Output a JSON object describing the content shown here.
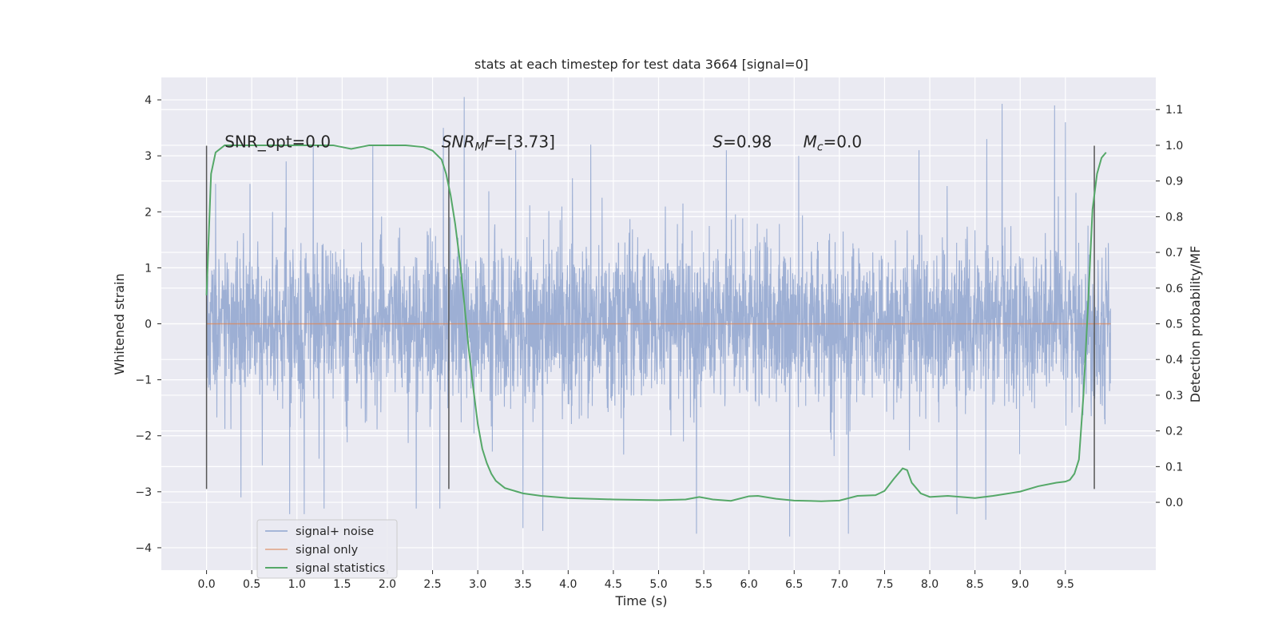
{
  "chart_data": {
    "type": "line",
    "title": "stats at each timestep for test data 3664 [signal=0]",
    "xlabel": "Time (s)",
    "ylabel_left": "Whitened strain",
    "ylabel_right": "Detection probability/MF",
    "xlim": [
      -0.5,
      10.5
    ],
    "ylim_left": [
      -4.4,
      4.4
    ],
    "ylim_right": [
      -0.19,
      1.19
    ],
    "xticks": [
      "0.0",
      "0.5",
      "1.0",
      "1.5",
      "2.0",
      "2.5",
      "3.0",
      "3.5",
      "4.0",
      "4.5",
      "5.0",
      "5.5",
      "6.0",
      "6.5",
      "7.0",
      "7.5",
      "8.0",
      "8.5",
      "9.0",
      "9.5"
    ],
    "yticks_left": [
      "4",
      "3",
      "2",
      "1",
      "0",
      "−1",
      "−2",
      "−3",
      "−4"
    ],
    "yticks_right": [
      "1.1",
      "1.0",
      "0.9",
      "0.8",
      "0.7",
      "0.6",
      "0.5",
      "0.4",
      "0.3",
      "0.2",
      "0.1",
      "0.0"
    ],
    "grid": true,
    "legend_position": "lower-left",
    "series": [
      {
        "name": "signal+ noise",
        "color": "#8fa5cf",
        "axis": "left",
        "description_range": [
          0.0,
          10.0
        ],
        "peaks_top": [
          [
            0.1,
            2.5
          ],
          [
            0.48,
            2.5
          ],
          [
            0.88,
            2.9
          ],
          [
            1.18,
            3.2
          ],
          [
            1.3,
            3.2
          ],
          [
            1.84,
            3.2
          ],
          [
            2.62,
            3.5
          ],
          [
            2.85,
            4.05
          ],
          [
            3.42,
            3.1
          ],
          [
            4.25,
            3.2
          ],
          [
            5.75,
            3.1
          ],
          [
            6.55,
            3.0
          ],
          [
            7.88,
            3.1
          ],
          [
            8.63,
            3.3
          ],
          [
            8.8,
            3.93
          ],
          [
            9.38,
            3.9
          ],
          [
            9.5,
            3.6
          ]
        ],
        "peaks_bottom": [
          [
            0.38,
            -3.1
          ],
          [
            0.92,
            -3.4
          ],
          [
            1.08,
            -3.4
          ],
          [
            1.3,
            -3.3
          ],
          [
            2.32,
            -3.3
          ],
          [
            2.58,
            -3.3
          ],
          [
            3.5,
            -3.65
          ],
          [
            3.72,
            -3.7
          ],
          [
            5.42,
            -3.75
          ],
          [
            6.45,
            -3.8
          ],
          [
            7.1,
            -3.75
          ],
          [
            8.3,
            -3.4
          ],
          [
            8.62,
            -3.5
          ]
        ]
      },
      {
        "name": "signal only",
        "color": "#dd8452",
        "axis": "left",
        "x": [
          0.0,
          10.0
        ],
        "y": [
          0.0,
          0.0
        ]
      },
      {
        "name": "signal statistics",
        "color": "#55a868",
        "axis": "right",
        "x": [
          0.0,
          0.05,
          0.1,
          0.15,
          0.2,
          0.3,
          0.5,
          0.8,
          1.0,
          1.2,
          1.4,
          1.5,
          1.6,
          1.8,
          2.0,
          2.2,
          2.4,
          2.5,
          2.6,
          2.65,
          2.7,
          2.75,
          2.8,
          2.85,
          2.9,
          2.95,
          3.0,
          3.05,
          3.1,
          3.15,
          3.2,
          3.3,
          3.5,
          3.7,
          4.0,
          4.5,
          5.0,
          5.3,
          5.45,
          5.6,
          5.8,
          6.0,
          6.1,
          6.3,
          6.5,
          6.8,
          7.0,
          7.2,
          7.4,
          7.5,
          7.6,
          7.7,
          7.75,
          7.8,
          7.9,
          8.0,
          8.2,
          8.5,
          8.7,
          9.0,
          9.2,
          9.4,
          9.5,
          9.55,
          9.6,
          9.65,
          9.7,
          9.75,
          9.8,
          9.85,
          9.9,
          9.95
        ],
        "y": [
          0.58,
          0.92,
          0.98,
          0.99,
          1.0,
          1.0,
          1.0,
          1.0,
          1.0,
          1.0,
          1.0,
          0.995,
          0.99,
          1.0,
          1.0,
          1.0,
          0.995,
          0.985,
          0.96,
          0.92,
          0.86,
          0.78,
          0.68,
          0.56,
          0.43,
          0.32,
          0.22,
          0.15,
          0.11,
          0.08,
          0.06,
          0.04,
          0.025,
          0.018,
          0.012,
          0.008,
          0.006,
          0.008,
          0.015,
          0.008,
          0.004,
          0.017,
          0.018,
          0.01,
          0.005,
          0.003,
          0.005,
          0.018,
          0.02,
          0.032,
          0.065,
          0.095,
          0.09,
          0.055,
          0.025,
          0.015,
          0.018,
          0.012,
          0.018,
          0.03,
          0.045,
          0.055,
          0.058,
          0.063,
          0.08,
          0.12,
          0.3,
          0.55,
          0.82,
          0.92,
          0.965,
          0.98
        ]
      }
    ],
    "vlines": {
      "color": "#555555",
      "x": [
        0.0,
        2.68,
        9.82
      ],
      "y_range": [
        -2.95,
        3.18
      ]
    },
    "annotations": [
      {
        "x": 0.2,
        "y": 3.15,
        "text": "SNR_opt=0.0"
      },
      {
        "x": 2.6,
        "y": 3.15,
        "text": "SNR_MF=[3.73]"
      },
      {
        "x": 5.6,
        "y": 3.15,
        "text": "S=0.98"
      },
      {
        "x": 6.6,
        "y": 3.15,
        "text": "M_c=0.0"
      }
    ]
  }
}
